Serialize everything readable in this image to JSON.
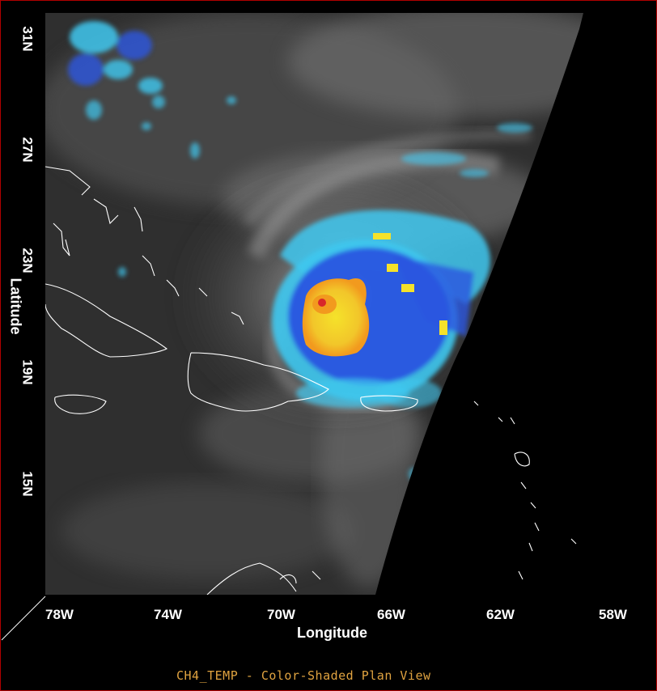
{
  "map": {
    "latitude_labels": [
      "31N",
      "27N",
      "23N",
      "19N",
      "15N"
    ],
    "longitude_labels": [
      "78W",
      "74W",
      "70W",
      "66W",
      "62W",
      "58W"
    ],
    "latitude_title": "Latitude",
    "longitude_title": "Longitude",
    "product_title": "CH4_TEMP - Color-Shaded Plan View",
    "colors": {
      "frame": "#b00000",
      "land_outline": "#ffffff",
      "cold_cloud_cyan": "#3fc8f0",
      "cold_cloud_blue": "#2a55e0",
      "coldest_yellow": "#f5e22a",
      "coldest_orange": "#f29a1e",
      "core_red": "#d8262a",
      "title_text": "#e0a340"
    }
  }
}
